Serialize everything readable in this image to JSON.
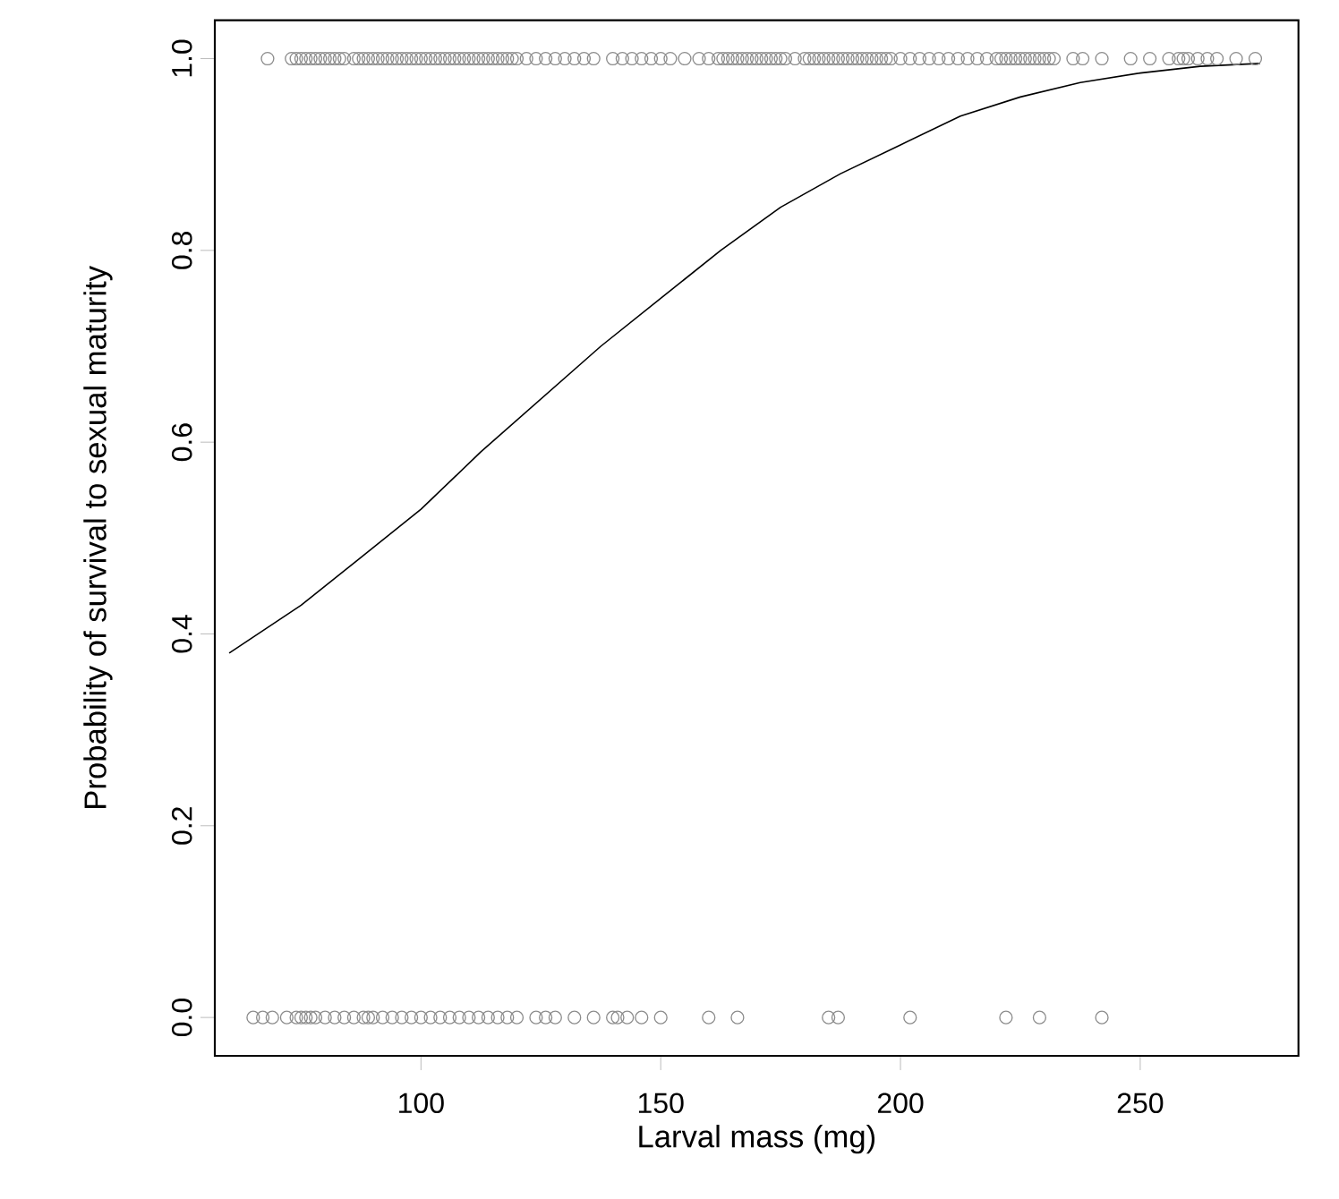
{
  "chart_data": {
    "type": "scatter",
    "xlabel": "Larval mass (mg)",
    "ylabel": "Probability of survival to sexual maturity",
    "xlim": [
      57,
      283
    ],
    "ylim": [
      -0.04,
      1.04
    ],
    "xticks": [
      100,
      150,
      200,
      250
    ],
    "yticks": [
      {
        "value": 0,
        "label": "0.0"
      },
      {
        "value": 0.2,
        "label": "0.2"
      },
      {
        "value": 0.4,
        "label": "0.4"
      },
      {
        "value": 0.6,
        "label": "0.6"
      },
      {
        "value": 0.8,
        "label": "0.8"
      },
      {
        "value": 1,
        "label": "1.0"
      }
    ],
    "grid": false,
    "series": [
      {
        "marker": "circle",
        "color": "#8c8c8c",
        "x": [
          68,
          73,
          74,
          75,
          76,
          77,
          78,
          79,
          80,
          81,
          82,
          83,
          84,
          86,
          87,
          88,
          89,
          90,
          91,
          92,
          93,
          94,
          95,
          96,
          97,
          98,
          99,
          100,
          101,
          102,
          103,
          104,
          105,
          106,
          107,
          108,
          109,
          110,
          111,
          112,
          113,
          114,
          115,
          116,
          117,
          118,
          119,
          120,
          122,
          124,
          126,
          128,
          130,
          132,
          134,
          136,
          140,
          142,
          144,
          146,
          148,
          150,
          152,
          155,
          158,
          160,
          162,
          163,
          164,
          165,
          166,
          167,
          168,
          169,
          170,
          171,
          172,
          173,
          174,
          175,
          176,
          178,
          180,
          181,
          182,
          183,
          184,
          185,
          186,
          187,
          188,
          189,
          190,
          191,
          192,
          193,
          194,
          195,
          196,
          197,
          198,
          200,
          202,
          204,
          206,
          208,
          210,
          212,
          214,
          216,
          218,
          220,
          221,
          222,
          223,
          224,
          225,
          226,
          227,
          228,
          229,
          230,
          231,
          232,
          236,
          238,
          242,
          248,
          252,
          256,
          258,
          259,
          260,
          262,
          264,
          266,
          270,
          274
        ],
        "values": [
          1,
          1,
          1,
          1,
          1,
          1,
          1,
          1,
          1,
          1,
          1,
          1,
          1,
          1,
          1,
          1,
          1,
          1,
          1,
          1,
          1,
          1,
          1,
          1,
          1,
          1,
          1,
          1,
          1,
          1,
          1,
          1,
          1,
          1,
          1,
          1,
          1,
          1,
          1,
          1,
          1,
          1,
          1,
          1,
          1,
          1,
          1,
          1,
          1,
          1,
          1,
          1,
          1,
          1,
          1,
          1,
          1,
          1,
          1,
          1,
          1,
          1,
          1,
          1,
          1,
          1,
          1,
          1,
          1,
          1,
          1,
          1,
          1,
          1,
          1,
          1,
          1,
          1,
          1,
          1,
          1,
          1,
          1,
          1,
          1,
          1,
          1,
          1,
          1,
          1,
          1,
          1,
          1,
          1,
          1,
          1,
          1,
          1,
          1,
          1,
          1,
          1,
          1,
          1,
          1,
          1,
          1,
          1,
          1,
          1,
          1,
          1,
          1,
          1,
          1,
          1,
          1,
          1,
          1,
          1,
          1,
          1,
          1,
          1,
          1,
          1,
          1,
          1,
          1,
          1,
          1,
          1,
          1,
          1,
          1,
          1,
          1,
          1
        ]
      },
      {
        "marker": "circle",
        "color": "#8c8c8c",
        "x": [
          65,
          67,
          69,
          72,
          74,
          75,
          76,
          77,
          78,
          80,
          82,
          84,
          86,
          88,
          89,
          90,
          92,
          94,
          96,
          98,
          100,
          102,
          104,
          106,
          108,
          110,
          112,
          114,
          116,
          118,
          120,
          124,
          126,
          128,
          132,
          136,
          140,
          141,
          143,
          146,
          150,
          160,
          166,
          185,
          187,
          202,
          222,
          229,
          242
        ],
        "values": [
          0,
          0,
          0,
          0,
          0,
          0,
          0,
          0,
          0,
          0,
          0,
          0,
          0,
          0,
          0,
          0,
          0,
          0,
          0,
          0,
          0,
          0,
          0,
          0,
          0,
          0,
          0,
          0,
          0,
          0,
          0,
          0,
          0,
          0,
          0,
          0,
          0,
          0,
          0,
          0,
          0,
          0,
          0,
          0,
          0,
          0,
          0,
          0,
          0
        ]
      },
      {
        "type": "line",
        "marker": "none",
        "color": "#000000",
        "x": [
          60,
          75,
          87.5,
          100,
          112.5,
          125,
          137.5,
          150,
          162.5,
          175,
          187.5,
          200,
          212.5,
          225,
          237.5,
          250,
          262.5,
          275
        ],
        "values": [
          0.38,
          0.43,
          0.48,
          0.53,
          0.59,
          0.645,
          0.7,
          0.75,
          0.8,
          0.845,
          0.88,
          0.91,
          0.94,
          0.96,
          0.975,
          0.985,
          0.992,
          0.995
        ]
      }
    ]
  }
}
